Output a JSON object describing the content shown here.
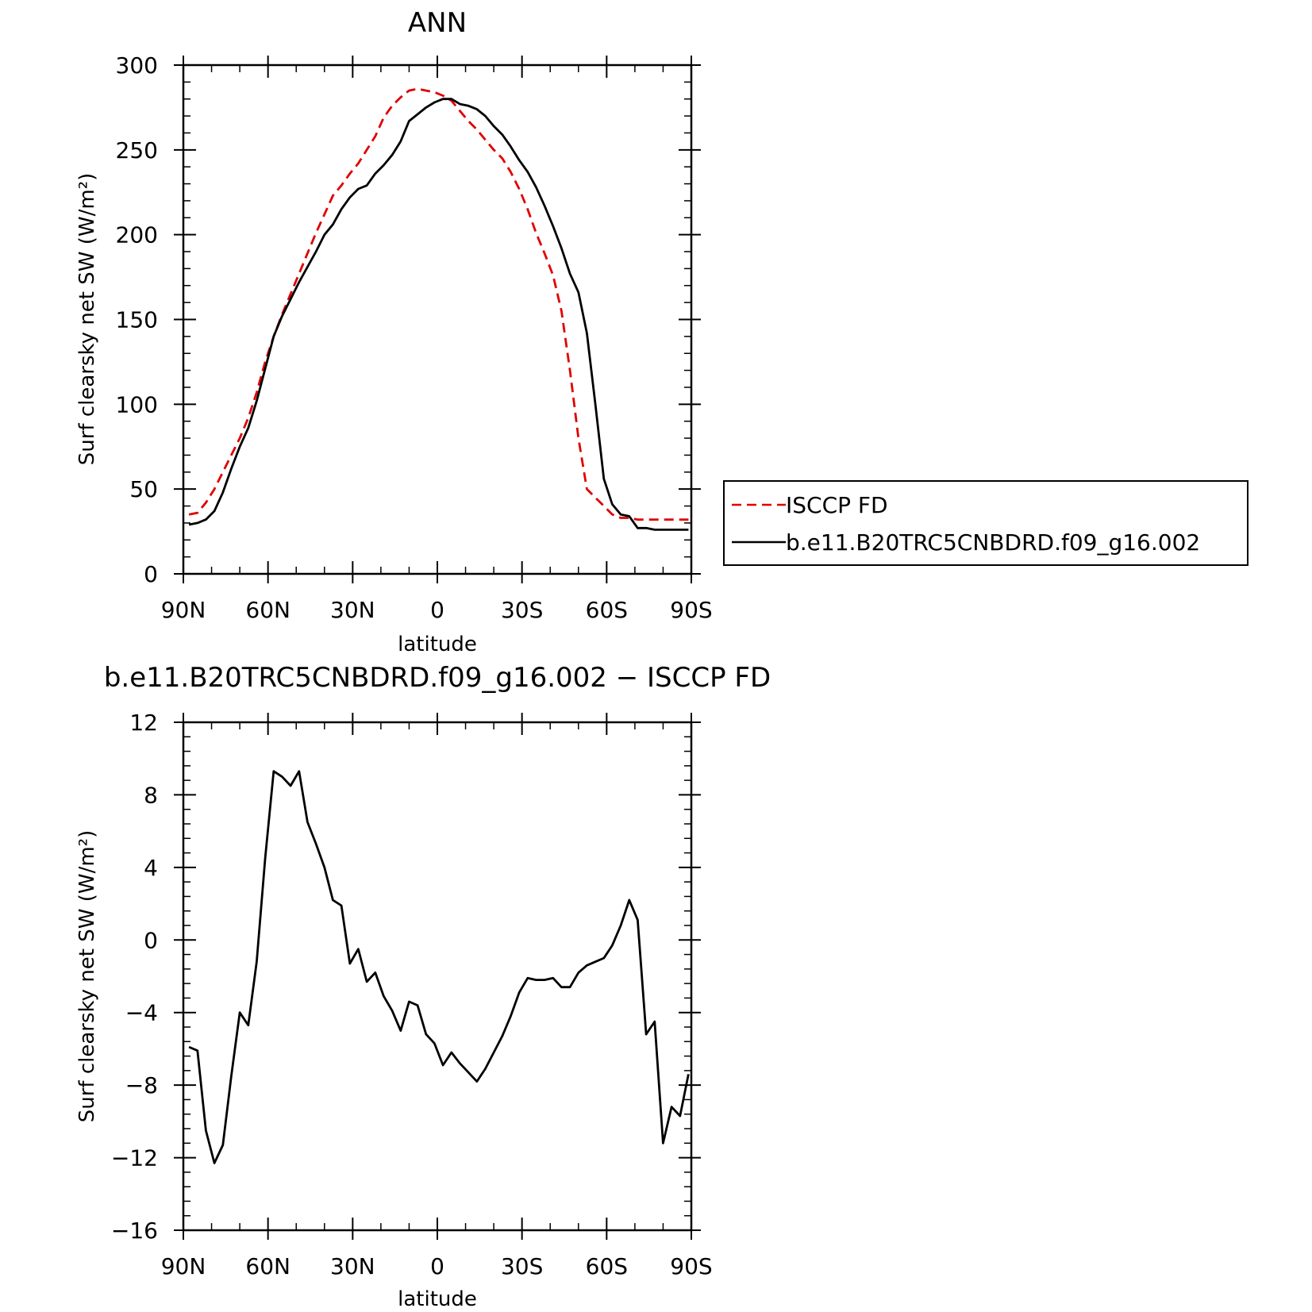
{
  "chart_data": [
    {
      "type": "line",
      "title": "ANN",
      "xlabel": "latitude",
      "ylabel": "Surf clearsky net SW (W/m²)",
      "xticks": [
        "90N",
        "60N",
        "30N",
        "0",
        "30S",
        "60S",
        "90S"
      ],
      "yticks": [
        "0",
        "50",
        "100",
        "150",
        "200",
        "250",
        "300"
      ],
      "xlim": [
        -90,
        90
      ],
      "ylim": [
        0,
        300
      ],
      "grid": false,
      "legend_position": "right",
      "series": [
        {
          "name": "ISCCP FD",
          "color": "#e00000",
          "dash": "dashed",
          "x": [
            -88,
            -85,
            -82,
            -79,
            -76,
            -73,
            -70,
            -67,
            -64,
            -61,
            -58,
            -55,
            -52,
            -49,
            -46,
            -43,
            -40,
            -37,
            -34,
            -31,
            -28,
            -25,
            -22,
            -19,
            -16,
            -13,
            -10,
            -7,
            -4,
            -1,
            2,
            5,
            8,
            11,
            14,
            17,
            20,
            23,
            26,
            29,
            32,
            35,
            38,
            41,
            44,
            47,
            50,
            53,
            56,
            59,
            62,
            65,
            68,
            71,
            74,
            77,
            80,
            83,
            86,
            89
          ],
          "y": [
            35,
            36,
            42,
            50,
            60,
            70,
            80,
            92,
            107,
            125,
            140,
            153,
            165,
            177,
            189,
            201,
            212,
            223,
            229,
            236,
            242,
            250,
            258,
            269,
            276,
            281,
            285,
            286,
            285,
            284,
            282,
            279,
            273,
            267,
            262,
            256,
            250,
            245,
            237,
            227,
            215,
            201,
            189,
            176,
            155,
            120,
            80,
            50,
            45,
            40,
            35,
            33,
            33,
            32,
            32,
            32,
            32,
            32,
            32,
            32
          ]
        },
        {
          "name": "b.e11.B20TRC5CNBDRD.f09_g16.002",
          "color": "#000000",
          "dash": "solid",
          "x": [
            -88,
            -85,
            -82,
            -79,
            -76,
            -73,
            -70,
            -67,
            -64,
            -61,
            -58,
            -55,
            -52,
            -49,
            -46,
            -43,
            -40,
            -37,
            -34,
            -31,
            -28,
            -25,
            -22,
            -19,
            -16,
            -13,
            -10,
            -7,
            -4,
            -1,
            2,
            5,
            8,
            11,
            14,
            17,
            20,
            23,
            26,
            29,
            32,
            35,
            38,
            41,
            44,
            47,
            50,
            53,
            56,
            59,
            62,
            65,
            68,
            71,
            74,
            77,
            80,
            83,
            86,
            89
          ],
          "y": [
            29,
            30,
            32,
            37,
            48,
            62,
            75,
            86,
            102,
            121,
            140,
            152,
            162,
            172,
            181,
            190,
            200,
            206,
            215,
            222,
            227,
            229,
            236,
            241,
            247,
            255,
            267,
            271,
            275,
            278,
            280,
            280,
            277,
            276,
            274,
            270,
            264,
            259,
            252,
            244,
            237,
            228,
            217,
            205,
            192,
            177,
            166,
            142,
            100,
            56,
            41,
            35,
            34,
            27,
            27,
            26,
            26,
            26,
            26,
            26
          ]
        }
      ]
    },
    {
      "type": "line",
      "title": "b.e11.B20TRC5CNBDRD.f09_g16.002 − ISCCP FD",
      "xlabel": "latitude",
      "ylabel": "Surf clearsky net SW (W/m²)",
      "xticks": [
        "90N",
        "60N",
        "30N",
        "0",
        "30S",
        "60S",
        "90S"
      ],
      "yticks": [
        "−16",
        "−12",
        "−8",
        "−4",
        "0",
        "4",
        "8",
        "12"
      ],
      "xlim": [
        -90,
        90
      ],
      "ylim": [
        -16,
        12
      ],
      "grid": false,
      "series": [
        {
          "color": "#000000",
          "dash": "solid",
          "x": [
            -88,
            -85,
            -82,
            -79,
            -76,
            -73,
            -70,
            -67,
            -64,
            -61,
            -58,
            -55,
            -52,
            -49,
            -46,
            -43,
            -40,
            -37,
            -34,
            -31,
            -28,
            -25,
            -22,
            -19,
            -16,
            -13,
            -10,
            -7,
            -4,
            -1,
            2,
            5,
            8,
            11,
            14,
            17,
            20,
            23,
            26,
            29,
            32,
            35,
            38,
            41,
            44,
            47,
            50,
            53,
            56,
            59,
            62,
            65,
            68,
            71,
            74,
            77,
            80,
            83,
            86,
            89
          ],
          "y": [
            -5.9,
            -6.1,
            -10.5,
            -12.3,
            -11.3,
            -7.5,
            -4.0,
            -4.7,
            -1.2,
            4.5,
            9.3,
            9.0,
            8.5,
            9.3,
            6.5,
            5.3,
            4.0,
            2.2,
            1.9,
            -1.3,
            -0.5,
            -2.3,
            -1.8,
            -3.1,
            -3.9,
            -5.0,
            -3.4,
            -3.6,
            -5.2,
            -5.7,
            -6.9,
            -6.2,
            -6.8,
            -7.3,
            -7.8,
            -7.1,
            -6.2,
            -5.3,
            -4.2,
            -2.9,
            -2.1,
            -2.2,
            -2.2,
            -2.1,
            -2.6,
            -2.6,
            -1.8,
            -1.4,
            -1.2,
            -1.0,
            -0.3,
            0.8,
            2.2,
            1.1,
            -5.2,
            -4.5,
            -11.2,
            -9.2,
            -9.7,
            -7.4
          ]
        }
      ]
    }
  ]
}
